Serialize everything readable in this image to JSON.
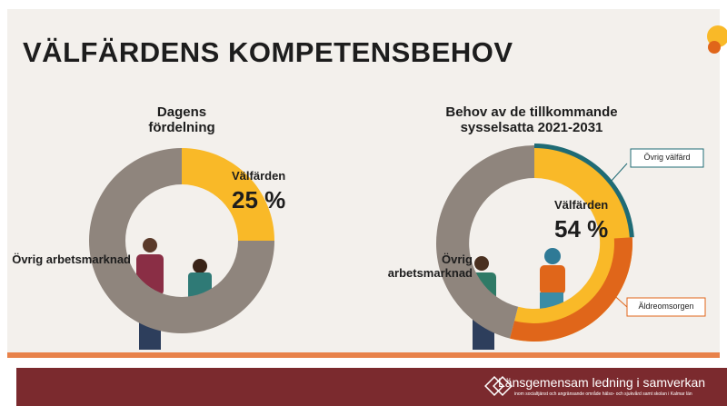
{
  "header": {
    "title": "VÄLFÄRDENS KOMPETENSBEHOV"
  },
  "chart_data": [
    {
      "type": "donut",
      "title": "Dagens fördelning",
      "categories": [
        "Välfärden",
        "Övrig arbetsmarknad"
      ],
      "values": [
        25,
        75
      ],
      "value_labels": [
        "25 %",
        null
      ],
      "colors": [
        "#f9b928",
        "#8f857d"
      ]
    },
    {
      "type": "donut",
      "title": "Behov av de tillkommande sysselsatta 2021-2031",
      "categories": [
        "Välfärden",
        "Övrig arbetsmarknad"
      ],
      "values": [
        54,
        46
      ],
      "value_labels": [
        "54 %",
        null
      ],
      "colors": [
        "#f9b928",
        "#8f857d"
      ],
      "breakdown": {
        "categories": [
          "Övrig välfärd",
          "Äldreomsorgen"
        ],
        "values": [
          24,
          30
        ],
        "colors": [
          "#1f6b75",
          "#e0661a"
        ]
      }
    }
  ],
  "footer": {
    "title": "Länsgemensam ledning i samverkan",
    "subtitle": "inom socialtjänst och angränsande område hälso- och sjukvård samt skolan i Kalmar län"
  }
}
